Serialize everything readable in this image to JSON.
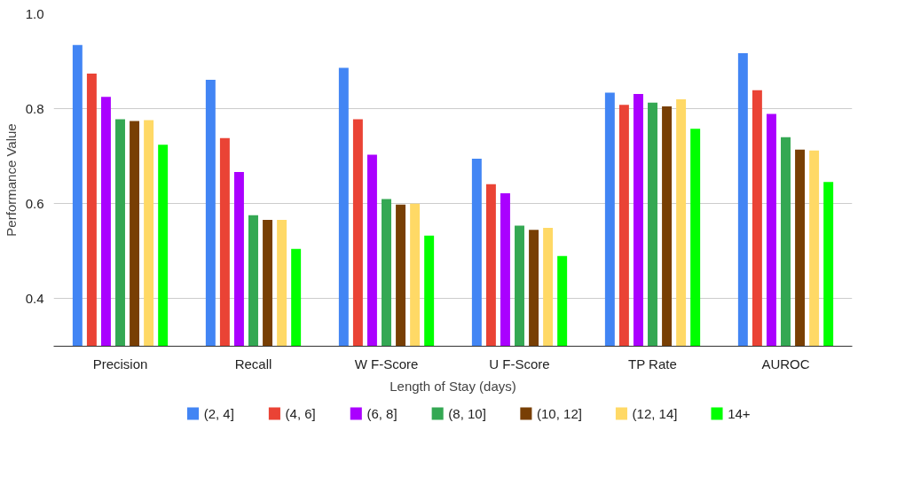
{
  "chart_data": {
    "type": "bar",
    "xlabel": "Length of Stay (days)",
    "ylabel": "Performance Value",
    "categories": [
      "Precision",
      "Recall",
      "W F-Score",
      "U F-Score",
      "TP Rate",
      "AUROC"
    ],
    "series": [
      {
        "name": "(2, 4]",
        "color": "#4285f4",
        "values": [
          0.934,
          0.861,
          0.886,
          0.695,
          0.834,
          0.917
        ]
      },
      {
        "name": "(4, 6]",
        "color": "#ea4335",
        "values": [
          0.874,
          0.738,
          0.778,
          0.641,
          0.808,
          0.839
        ]
      },
      {
        "name": "(6, 8]",
        "color": "#aa00ff",
        "values": [
          0.825,
          0.667,
          0.703,
          0.622,
          0.831,
          0.789
        ]
      },
      {
        "name": "(8, 10]",
        "color": "#34a853",
        "values": [
          0.778,
          0.576,
          0.61,
          0.554,
          0.813,
          0.74
        ]
      },
      {
        "name": "(10, 12]",
        "color": "#783f04",
        "values": [
          0.774,
          0.566,
          0.598,
          0.545,
          0.805,
          0.714
        ]
      },
      {
        "name": "(12, 14]",
        "color": "#ffd966",
        "values": [
          0.776,
          0.566,
          0.6,
          0.549,
          0.82,
          0.712
        ]
      },
      {
        "name": "14+",
        "color": "#00ff00",
        "values": [
          0.724,
          0.505,
          0.533,
          0.49,
          0.758,
          0.646
        ]
      }
    ],
    "ylim": [
      0.3,
      1.0
    ],
    "yticks": [
      0.4,
      0.6,
      0.8,
      {
        "value": 1.0,
        "label": "1.0"
      }
    ],
    "grid": "y",
    "legend": "bottom"
  }
}
